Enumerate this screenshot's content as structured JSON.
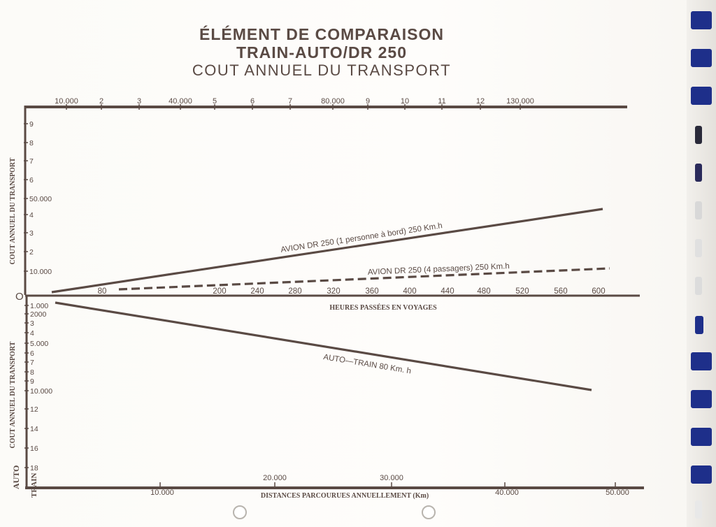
{
  "title": {
    "line1": "ÉLÉMENT DE COMPARAISON",
    "line2": "TRAIN-AUTO/DR 250",
    "line3": "COUT ANNUEL DU TRANSPORT"
  },
  "colors": {
    "ink": "#5a4a44",
    "ring_blue": "#1e2f8a",
    "ring_white": "#f4f4f4"
  },
  "chart_data": {
    "type": "line",
    "top_axis_ticks": [
      "10.000",
      "2",
      "3",
      "40.000",
      "5",
      "6",
      "7",
      "80.000",
      "9",
      "10",
      "11",
      "12",
      "130.000"
    ],
    "upper_y_label": "COUT ANNUEL DU TRANSPORT",
    "upper_y_ticks": [
      "9",
      "8",
      "7",
      "6",
      "50.000",
      "4",
      "3",
      "2",
      "10.000"
    ],
    "origin_label": "O",
    "hours_axis": {
      "label": "HEURES PASSÉES EN VOYAGES",
      "ticks": [
        "80",
        "200",
        "240",
        "280",
        "320",
        "360",
        "400",
        "440",
        "480",
        "520",
        "560",
        "600"
      ]
    },
    "lower_y_label": "COUT ANNUEL DU TRANSPORT",
    "lower_y_ticks": [
      "1.000",
      "2000",
      "3",
      "4",
      "5.000",
      "6",
      "7",
      "8",
      "9",
      "10.000",
      "12",
      "14",
      "16",
      "18"
    ],
    "distance_axis": {
      "label": "DISTANCES PARCOURUES ANNUELLEMENT (Km)",
      "ticks_lower": [
        "10.000",
        "40.000",
        "50.000"
      ],
      "ticks_upper": [
        "20.000",
        "30.000"
      ]
    },
    "corner_labels": {
      "auto": "AUTO",
      "train": "TRAIN"
    },
    "series": [
      {
        "name": "AVION   DR 250   (1 personne à bord)   250  Km.h",
        "style": "solid",
        "trend": "rising"
      },
      {
        "name": "AVION   DR 250   (4   passagers)   250  Km.h",
        "style": "dashed",
        "trend": "rising"
      },
      {
        "name": "AUTO—TRAIN   80  Km. h",
        "style": "solid",
        "trend": "falling"
      }
    ]
  }
}
